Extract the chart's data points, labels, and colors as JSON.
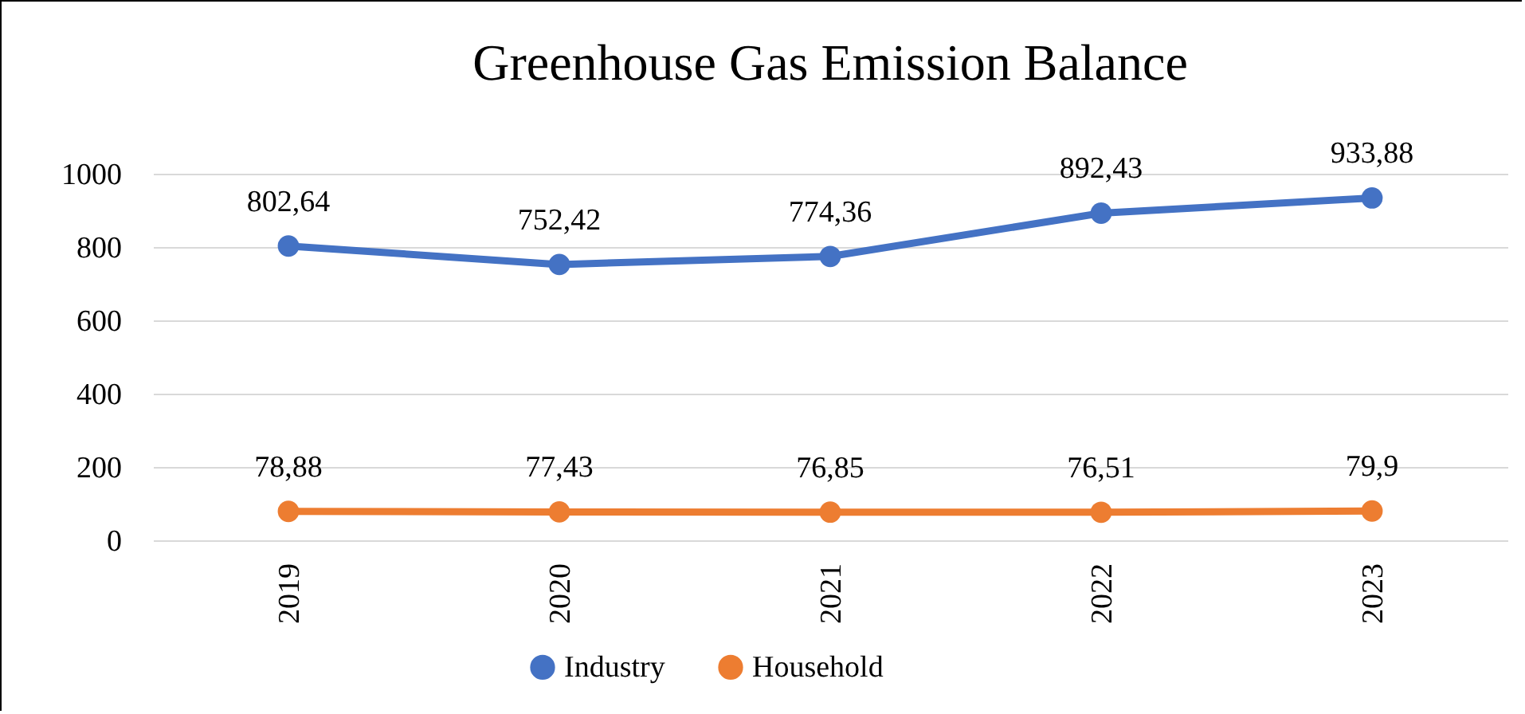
{
  "chart_data": {
    "type": "line",
    "title": "Greenhouse Gas Emission Balance",
    "categories": [
      "2019",
      "2020",
      "2021",
      "2022",
      "2023"
    ],
    "series": [
      {
        "name": "Industry",
        "color": "#4472c4",
        "values": [
          802.64,
          752.42,
          774.36,
          892.43,
          933.88
        ],
        "value_labels": [
          "802,64",
          "752,42",
          "774,36",
          "892,43",
          "933,88"
        ]
      },
      {
        "name": "Household",
        "color": "#ed7d31",
        "values": [
          78.88,
          77.43,
          76.85,
          76.51,
          79.9
        ],
        "value_labels": [
          "78,88",
          "77,43",
          "76,85",
          "76,51",
          "79,9"
        ]
      }
    ],
    "ylim": [
      0,
      1000
    ],
    "yticks": [
      0,
      200,
      400,
      600,
      800,
      1000
    ],
    "grid": "y",
    "legend": "bottom",
    "marker": "circle",
    "line_style": "solid"
  }
}
